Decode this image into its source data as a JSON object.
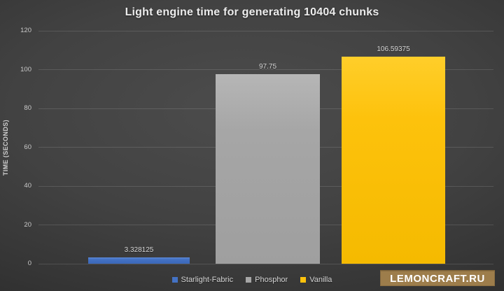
{
  "chart_data": {
    "type": "bar",
    "title": "Light engine time for generating 10404 chunks",
    "xlabel": "",
    "ylabel": "TIME (SECONDS)",
    "ylim": [
      0,
      120
    ],
    "yticks": [
      0,
      20,
      40,
      60,
      80,
      100,
      120
    ],
    "grid": true,
    "legend_position": "bottom",
    "categories": [
      "Starlight-Fabric",
      "Phosphor",
      "Vanilla"
    ],
    "values": [
      3.328125,
      97.75,
      106.59375
    ],
    "value_labels": [
      "3.328125",
      "97.75",
      "106.59375"
    ],
    "series_colors": [
      "#4472c4",
      "#a6a6a6",
      "#fdc20c"
    ]
  },
  "colors": {
    "background_center": "#4c4c4c",
    "background_edge": "#1b1b1b",
    "grid": "#565656",
    "text": "#d8d8d8",
    "watermark_bg": "#9d7d4b"
  },
  "watermark": {
    "text": "LEMONCRAFT.RU"
  }
}
